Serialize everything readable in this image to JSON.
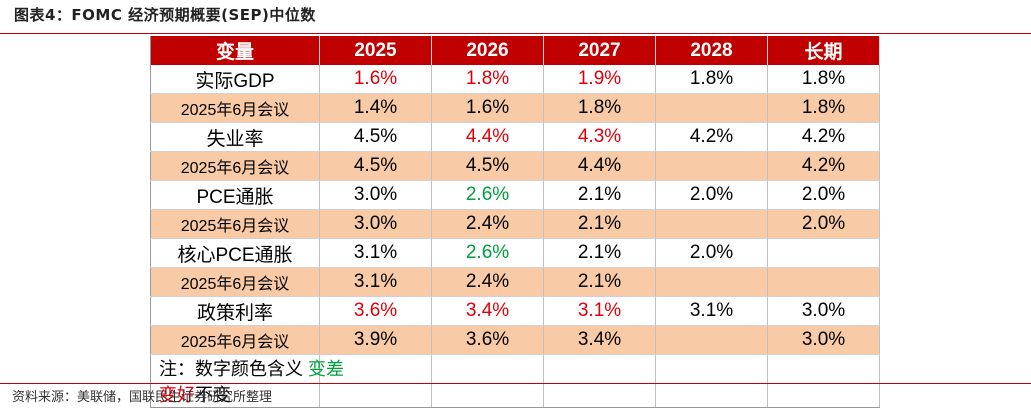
{
  "title": "图表4：FOMC 经济预期概要(SEP)中位数",
  "header": [
    "变量",
    "2025",
    "2026",
    "2027",
    "2028",
    "长期"
  ],
  "rows": [
    {
      "type": "main",
      "cells": [
        {
          "t": "实际GDP"
        },
        {
          "t": "1.6%",
          "c": "red"
        },
        {
          "t": "1.8%",
          "c": "red"
        },
        {
          "t": "1.9%",
          "c": "red"
        },
        {
          "t": "1.8%"
        },
        {
          "t": "1.8%"
        }
      ]
    },
    {
      "type": "sub",
      "cells": [
        {
          "t": "2025年6月会议"
        },
        {
          "t": "1.4%"
        },
        {
          "t": "1.6%"
        },
        {
          "t": "1.8%"
        },
        {
          "t": ""
        },
        {
          "t": "1.8%"
        }
      ]
    },
    {
      "type": "main",
      "cells": [
        {
          "t": "失业率"
        },
        {
          "t": "4.5%"
        },
        {
          "t": "4.4%",
          "c": "red"
        },
        {
          "t": "4.3%",
          "c": "red"
        },
        {
          "t": "4.2%"
        },
        {
          "t": "4.2%"
        }
      ]
    },
    {
      "type": "sub",
      "cells": [
        {
          "t": "2025年6月会议"
        },
        {
          "t": "4.5%"
        },
        {
          "t": "4.5%"
        },
        {
          "t": "4.4%"
        },
        {
          "t": ""
        },
        {
          "t": "4.2%"
        }
      ]
    },
    {
      "type": "main",
      "cells": [
        {
          "t": "PCE通胀"
        },
        {
          "t": "3.0%"
        },
        {
          "t": "2.6%",
          "c": "green"
        },
        {
          "t": "2.1%"
        },
        {
          "t": "2.0%"
        },
        {
          "t": "2.0%"
        }
      ]
    },
    {
      "type": "sub",
      "cells": [
        {
          "t": "2025年6月会议"
        },
        {
          "t": "3.0%"
        },
        {
          "t": "2.4%"
        },
        {
          "t": "2.1%"
        },
        {
          "t": ""
        },
        {
          "t": "2.0%"
        }
      ]
    },
    {
      "type": "main",
      "cells": [
        {
          "t": "核心PCE通胀"
        },
        {
          "t": "3.1%"
        },
        {
          "t": "2.6%",
          "c": "green"
        },
        {
          "t": "2.1%"
        },
        {
          "t": "2.0%"
        },
        {
          "t": ""
        }
      ]
    },
    {
      "type": "sub",
      "cells": [
        {
          "t": "2025年6月会议"
        },
        {
          "t": "3.1%"
        },
        {
          "t": "2.4%"
        },
        {
          "t": "2.1%"
        },
        {
          "t": ""
        },
        {
          "t": ""
        }
      ]
    },
    {
      "type": "main",
      "cells": [
        {
          "t": "政策利率"
        },
        {
          "t": "3.6%",
          "c": "red"
        },
        {
          "t": "3.4%",
          "c": "red"
        },
        {
          "t": "3.1%",
          "c": "red"
        },
        {
          "t": "3.1%"
        },
        {
          "t": "3.0%"
        }
      ]
    },
    {
      "type": "sub",
      "cells": [
        {
          "t": "2025年6月会议"
        },
        {
          "t": "3.9%"
        },
        {
          "t": "3.6%"
        },
        {
          "t": "3.4%"
        },
        {
          "t": ""
        },
        {
          "t": "3.0%"
        }
      ]
    }
  ],
  "note": {
    "prefix": "注：数字颜色含义 ",
    "worse": "变差",
    "better": "变好",
    "same": "不变",
    "worse_color": "#00a03c",
    "better_color": "#e0000a"
  },
  "source": "资料来源：美联储，国联民生证券研究所整理"
}
